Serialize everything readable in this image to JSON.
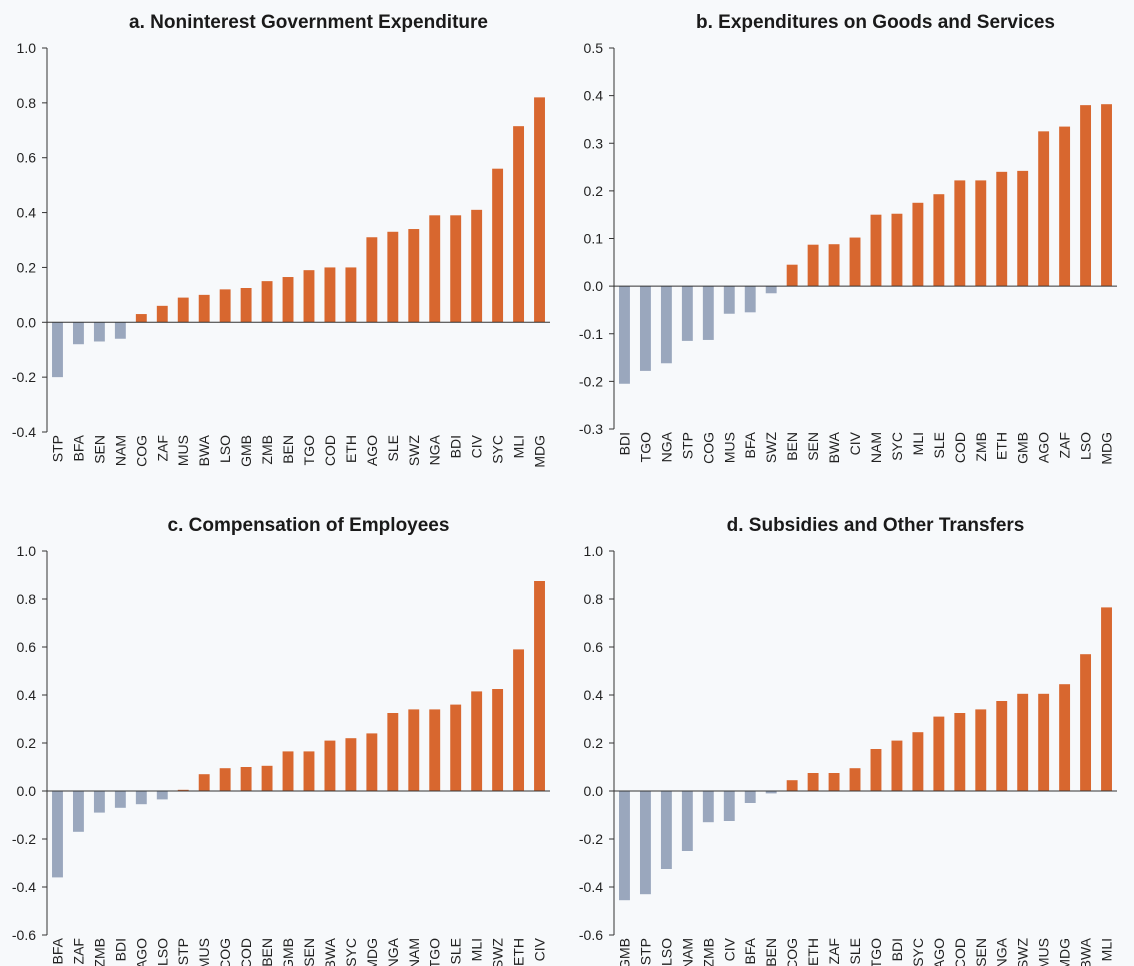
{
  "colors": {
    "positive": "#d8672f",
    "negative": "#9aa7bd",
    "axis": "#333333",
    "background": "#f7f9fb"
  },
  "chart_data": [
    {
      "type": "bar",
      "title": "a. Noninterest Government Expenditure",
      "ylim": [
        -0.4,
        1.0
      ],
      "yticks": [
        "1.0",
        "0.8",
        "0.6",
        "0.4",
        "0.2",
        "0.0",
        "-0.2",
        "-0.4"
      ],
      "categories": [
        "STP",
        "BFA",
        "SEN",
        "NAM",
        "COG",
        "ZAF",
        "MUS",
        "BWA",
        "LSO",
        "GMB",
        "ZMB",
        "BEN",
        "TGO",
        "COD",
        "ETH",
        "AGO",
        "SLE",
        "SWZ",
        "NGA",
        "BDI",
        "CIV",
        "SYC",
        "MLI",
        "MDG"
      ],
      "values": [
        -0.2,
        -0.08,
        -0.07,
        -0.06,
        0.03,
        0.06,
        0.09,
        0.1,
        0.12,
        0.125,
        0.15,
        0.165,
        0.19,
        0.2,
        0.2,
        0.31,
        0.33,
        0.34,
        0.39,
        0.39,
        0.41,
        0.56,
        0.715,
        0.82
      ]
    },
    {
      "type": "bar",
      "title": "b. Expenditures on Goods and Services",
      "ylim": [
        -0.3,
        0.5
      ],
      "yticks": [
        "0.5",
        "0.4",
        "0.3",
        "0.2",
        "0.1",
        "0.0",
        "-0.1",
        "-0.2",
        "-0.3"
      ],
      "categories": [
        "BDI",
        "TGO",
        "NGA",
        "STP",
        "COG",
        "MUS",
        "BFA",
        "SWZ",
        "BEN",
        "SEN",
        "BWA",
        "CIV",
        "NAM",
        "SYC",
        "MLI",
        "SLE",
        "COD",
        "ZMB",
        "ETH",
        "GMB",
        "AGO",
        "ZAF",
        "LSO",
        "MDG"
      ],
      "values": [
        -0.205,
        -0.178,
        -0.162,
        -0.115,
        -0.113,
        -0.058,
        -0.055,
        -0.015,
        0.045,
        0.087,
        0.088,
        0.102,
        0.15,
        0.152,
        0.175,
        0.193,
        0.222,
        0.222,
        0.24,
        0.242,
        0.325,
        0.335,
        0.38,
        0.382
      ]
    },
    {
      "type": "bar",
      "title": "c. Compensation of Employees",
      "ylim": [
        -0.6,
        1.0
      ],
      "yticks": [
        "1.0",
        "0.8",
        "0.6",
        "0.4",
        "0.2",
        "0.0",
        "-0.2",
        "-0.4",
        "-0.6"
      ],
      "categories": [
        "BFA",
        "ZAF",
        "ZMB",
        "BDI",
        "AGO",
        "LSO",
        "STP",
        "MUS",
        "COG",
        "COD",
        "BEN",
        "GMB",
        "SEN",
        "BWA",
        "SYC",
        "MDG",
        "NGA",
        "NAM",
        "TGO",
        "SLE",
        "MLI",
        "SWZ",
        "ETH",
        "CIV"
      ],
      "values": [
        -0.36,
        -0.17,
        -0.09,
        -0.07,
        -0.055,
        -0.035,
        0.005,
        0.07,
        0.095,
        0.1,
        0.105,
        0.165,
        0.165,
        0.21,
        0.22,
        0.24,
        0.325,
        0.34,
        0.34,
        0.36,
        0.415,
        0.425,
        0.59,
        0.875
      ]
    },
    {
      "type": "bar",
      "title": "d. Subsidies and Other Transfers",
      "ylim": [
        -0.6,
        1.0
      ],
      "yticks": [
        "1.0",
        "0.8",
        "0.6",
        "0.4",
        "0.2",
        "0.0",
        "-0.2",
        "-0.4",
        "-0.6"
      ],
      "categories": [
        "GMB",
        "STP",
        "LSO",
        "NAM",
        "ZMB",
        "CIV",
        "BFA",
        "BEN",
        "COG",
        "ETH",
        "ZAF",
        "SLE",
        "TGO",
        "BDI",
        "SYC",
        "AGO",
        "COD",
        "SEN",
        "NGA",
        "SWZ",
        "MUS",
        "MDG",
        "BWA",
        "MLI"
      ],
      "values": [
        -0.455,
        -0.43,
        -0.325,
        -0.25,
        -0.13,
        -0.125,
        -0.05,
        -0.01,
        0.045,
        0.075,
        0.075,
        0.095,
        0.175,
        0.21,
        0.245,
        0.31,
        0.325,
        0.34,
        0.375,
        0.405,
        0.405,
        0.445,
        0.57,
        0.765
      ]
    }
  ]
}
